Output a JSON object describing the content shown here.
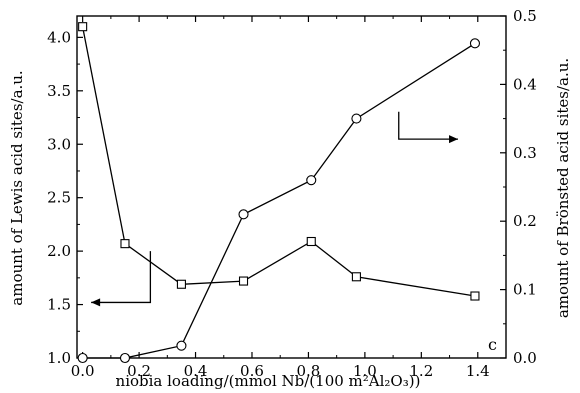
{
  "chart_data": {
    "type": "line",
    "panel_label": "c",
    "xlabel": "niobia loading/(mmol Nb/(100 m²Al₂O₃))",
    "ylabel_left": "amount of Lewis acid sites/a.u.",
    "ylabel_right": "amount of Brönsted acid sites/a.u.",
    "xlim": [
      -0.02,
      1.5
    ],
    "ylim_left": [
      1.0,
      4.2
    ],
    "ylim_right": [
      0.0,
      0.5
    ],
    "x_ticks": [
      "0.0",
      "0.2",
      "0.4",
      "0.6",
      "0.8",
      "1.0",
      "1.2",
      "1.4"
    ],
    "y_ticks_left": [
      "1.0",
      "1.5",
      "2.0",
      "2.5",
      "3.0",
      "3.5",
      "4.0"
    ],
    "y_ticks_right": [
      "0.0",
      "0.1",
      "0.2",
      "0.3",
      "0.4",
      "0.5"
    ],
    "grid": false,
    "series": [
      {
        "axis": "left",
        "marker": "square",
        "x": [
          0.0,
          0.15,
          0.35,
          0.57,
          0.81,
          0.97,
          1.39
        ],
        "y": [
          4.1,
          2.07,
          1.69,
          1.72,
          2.09,
          1.76,
          1.58
        ]
      },
      {
        "axis": "right",
        "marker": "circle",
        "x": [
          0.0,
          0.15,
          0.35,
          0.57,
          0.81,
          0.97,
          1.39
        ],
        "y": [
          0.0,
          0.0,
          0.018,
          0.21,
          0.26,
          0.35,
          0.46
        ]
      }
    ]
  }
}
